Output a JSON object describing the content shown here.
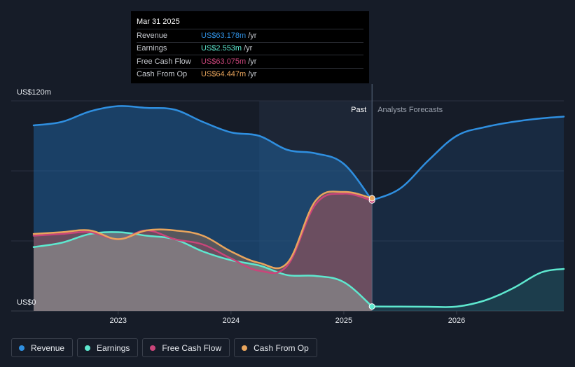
{
  "colors": {
    "background": "#161c28",
    "revenue": "#2f8fe0",
    "earnings": "#5ee8cf",
    "free_cash_flow": "#c9457a",
    "cash_from_op": "#e9a55d",
    "past_label": "#ffffff",
    "forecast_label": "#9aa1ad"
  },
  "tooltip": {
    "date": "Mar 31 2025",
    "rows": [
      {
        "label": "Revenue",
        "value": "US$63.178m",
        "unit": "/yr",
        "color": "#2f8fe0"
      },
      {
        "label": "Earnings",
        "value": "US$2.553m",
        "unit": "/yr",
        "color": "#5ee8cf"
      },
      {
        "label": "Free Cash Flow",
        "value": "US$63.075m",
        "unit": "/yr",
        "color": "#c9457a"
      },
      {
        "label": "Cash From Op",
        "value": "US$64.447m",
        "unit": "/yr",
        "color": "#e9a55d"
      }
    ]
  },
  "regions": {
    "past": "Past",
    "forecast": "Analysts Forecasts"
  },
  "legend": [
    {
      "label": "Revenue",
      "color": "#2f8fe0"
    },
    {
      "label": "Earnings",
      "color": "#5ee8cf"
    },
    {
      "label": "Free Cash Flow",
      "color": "#c9457a"
    },
    {
      "label": "Cash From Op",
      "color": "#e9a55d"
    }
  ],
  "chart_data": {
    "type": "area",
    "y_unit_labels": {
      "top": "US$120m",
      "bottom": "US$0"
    },
    "ylim": [
      0,
      120
    ],
    "xlim": [
      2022.25,
      2026.95
    ],
    "x_ticks": [
      2023,
      2024,
      2025,
      2026
    ],
    "x_tick_labels": [
      "2023",
      "2024",
      "2025",
      "2026"
    ],
    "divider_x": 2025.25,
    "highlight_start_x": 2024.25,
    "series": [
      {
        "name": "Revenue",
        "key": "revenue",
        "x": [
          2022.25,
          2022.5,
          2022.75,
          2023.0,
          2023.25,
          2023.5,
          2023.75,
          2024.0,
          2024.25,
          2024.5,
          2024.75,
          2025.0,
          2025.25
        ],
        "y": [
          106,
          108,
          114,
          117,
          116,
          115,
          108,
          102,
          100,
          92,
          90,
          84,
          63.2
        ]
      },
      {
        "name": "Revenue forecast",
        "key": "revenue",
        "forecast": true,
        "x": [
          2025.25,
          2025.5,
          2025.75,
          2026.0,
          2026.25,
          2026.5,
          2026.75,
          2026.95
        ],
        "y": [
          63.2,
          70,
          86,
          100,
          105,
          108,
          110,
          111
        ]
      },
      {
        "name": "Earnings",
        "key": "earnings",
        "x": [
          2022.25,
          2022.5,
          2022.75,
          2023.0,
          2023.25,
          2023.5,
          2023.75,
          2024.0,
          2024.25,
          2024.5,
          2024.75,
          2025.0,
          2025.25
        ],
        "y": [
          36.5,
          39,
          44,
          45,
          43,
          41,
          34,
          29,
          26,
          20.5,
          20,
          16.5,
          2.55
        ]
      },
      {
        "name": "Earnings forecast",
        "key": "earnings",
        "forecast": true,
        "x": [
          2025.25,
          2025.5,
          2025.75,
          2026.0,
          2026.25,
          2026.5,
          2026.75,
          2026.95
        ],
        "y": [
          2.55,
          2.5,
          2.4,
          2.5,
          6,
          13,
          22,
          24
        ]
      },
      {
        "name": "Free Cash Flow",
        "key": "free_cash_flow",
        "x": [
          2022.25,
          2022.5,
          2022.75,
          2023.0,
          2023.25,
          2023.5,
          2023.75,
          2024.0,
          2024.25,
          2024.5,
          2024.75,
          2025.0,
          2025.25
        ],
        "y": [
          43,
          44,
          45,
          41,
          46,
          41,
          38,
          30,
          23,
          26,
          61,
          67,
          63.1
        ]
      },
      {
        "name": "Cash From Op",
        "key": "cash_from_op",
        "x": [
          2022.25,
          2022.5,
          2022.75,
          2023.0,
          2023.25,
          2023.5,
          2023.75,
          2024.0,
          2024.25,
          2024.5,
          2024.75,
          2025.0,
          2025.25
        ],
        "y": [
          44,
          45,
          46,
          41,
          46,
          46,
          43,
          34,
          27.5,
          27.5,
          63,
          68,
          64.4
        ]
      }
    ]
  }
}
